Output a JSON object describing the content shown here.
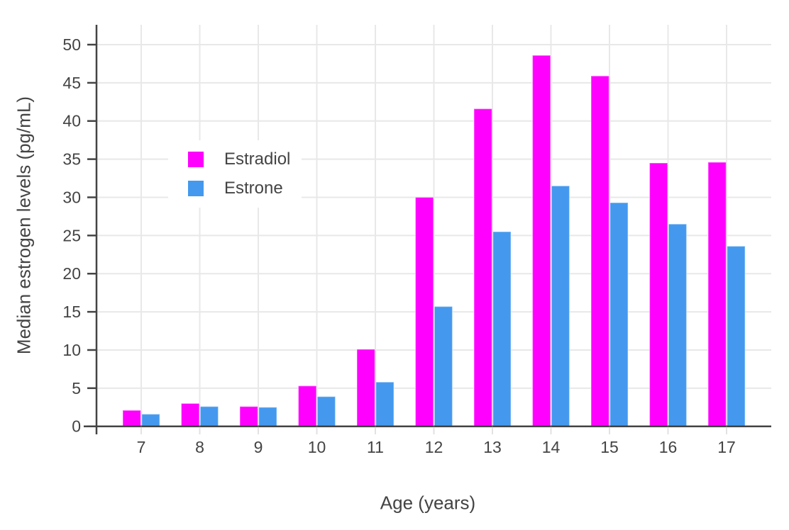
{
  "chart_data": {
    "type": "bar",
    "title": "",
    "xlabel": "Age (years)",
    "ylabel": "Median estrogen levels (pg/mL)",
    "categories": [
      "7",
      "8",
      "9",
      "10",
      "11",
      "12",
      "13",
      "14",
      "15",
      "16",
      "17"
    ],
    "series": [
      {
        "name": "Estradiol",
        "color": "#FF00FF",
        "values": [
          2.1,
          3.0,
          2.6,
          5.3,
          10.1,
          30.0,
          41.6,
          48.6,
          45.9,
          34.5,
          34.6
        ]
      },
      {
        "name": "Estrone",
        "color": "#4499EE",
        "values": [
          1.6,
          2.6,
          2.5,
          3.9,
          5.8,
          15.7,
          25.5,
          31.5,
          29.3,
          26.5,
          23.6
        ]
      }
    ],
    "ylim": [
      0,
      52.6
    ],
    "yticks": [
      0,
      5,
      10,
      15,
      20,
      25,
      30,
      35,
      40,
      45,
      50
    ],
    "grid": true,
    "legend_position": "inside-top-left",
    "axis_color": "#444444",
    "grid_color": "#E8E8E8",
    "minor_tick_color": "#E2E2E2",
    "background": "#FFFFFF"
  }
}
